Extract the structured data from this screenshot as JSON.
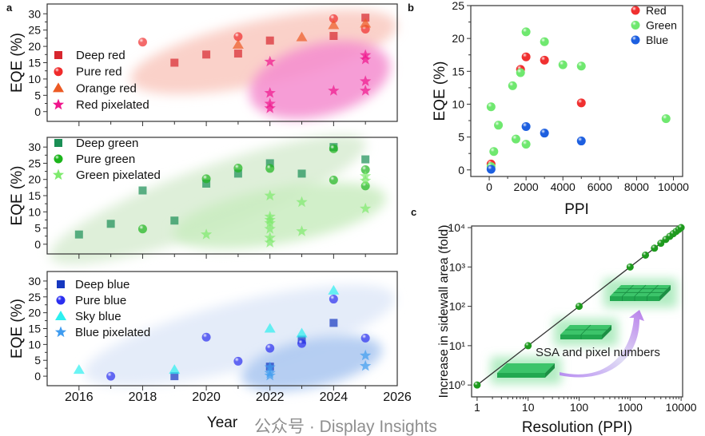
{
  "chart_data": [
    {
      "panel": "a",
      "type": "scatter",
      "xlabel": "",
      "ylabel": "EQE (%)",
      "xlim": [
        2015,
        2026
      ],
      "ylim": [
        -3,
        33
      ],
      "yticks": [
        0,
        5,
        10,
        15,
        20,
        25,
        30
      ],
      "shaded_regions": [
        "#f9c9c0",
        "#f48ccf"
      ],
      "series": [
        {
          "name": "Deep red",
          "marker": "square",
          "color": "#d7262e",
          "points": [
            [
              2019,
              15
            ],
            [
              2020,
              17.5
            ],
            [
              2021,
              17.8
            ],
            [
              2022,
              21.8
            ],
            [
              2024,
              23.2
            ],
            [
              2025,
              28.8
            ]
          ]
        },
        {
          "name": "Pure red",
          "marker": "circle",
          "color": "#f02b2b",
          "points": [
            [
              2018,
              21.3
            ],
            [
              2021,
              23
            ],
            [
              2024,
              28.5
            ],
            [
              2025,
              25.3
            ]
          ]
        },
        {
          "name": "Orange red",
          "marker": "triangle",
          "color": "#ec5a24",
          "points": [
            [
              2021,
              20.5
            ],
            [
              2023,
              22.8
            ],
            [
              2024,
              26.5
            ],
            [
              2025,
              27
            ]
          ]
        },
        {
          "name": "Red pixelated",
          "marker": "star",
          "color": "#f0158c",
          "points": [
            [
              2022,
              15.3
            ],
            [
              2022,
              5.7
            ],
            [
              2022,
              2.4
            ],
            [
              2022,
              1.0
            ],
            [
              2024,
              6.4
            ],
            [
              2025,
              17.3
            ],
            [
              2025,
              16
            ],
            [
              2025,
              9.3
            ],
            [
              2025,
              6.4
            ]
          ]
        }
      ]
    },
    {
      "panel": "a",
      "type": "scatter",
      "xlabel": "",
      "ylabel": "EQE (%)",
      "xlim": [
        2015,
        2026
      ],
      "ylim": [
        -3,
        33
      ],
      "yticks": [
        0,
        5,
        10,
        15,
        20,
        25,
        30
      ],
      "shaded_regions": [
        "#d8ecd2",
        "#c9ecc0"
      ],
      "series": [
        {
          "name": "Deep green",
          "marker": "square",
          "color": "#1a8f55",
          "points": [
            [
              2016,
              3
            ],
            [
              2017,
              6.3
            ],
            [
              2018,
              16.6
            ],
            [
              2019,
              7.3
            ],
            [
              2020,
              18.7
            ],
            [
              2021,
              21.8
            ],
            [
              2022,
              25
            ],
            [
              2023,
              21.8
            ],
            [
              2024,
              30
            ],
            [
              2025,
              26.2
            ]
          ]
        },
        {
          "name": "Pure green",
          "marker": "circle",
          "color": "#1cb51c",
          "points": [
            [
              2018,
              4.7
            ],
            [
              2020,
              20.2
            ],
            [
              2021,
              23.5
            ],
            [
              2022,
              23.4
            ],
            [
              2024,
              29.5
            ],
            [
              2024,
              19.8
            ],
            [
              2025,
              23
            ],
            [
              2025,
              18
            ]
          ]
        },
        {
          "name": "Green pixelated",
          "marker": "star",
          "color": "#7fea6e",
          "points": [
            [
              2020,
              3
            ],
            [
              2022,
              15
            ],
            [
              2022,
              8.5
            ],
            [
              2022,
              7.5
            ],
            [
              2022,
              6.5
            ],
            [
              2022,
              4.7
            ],
            [
              2022,
              2
            ],
            [
              2022,
              0.5
            ],
            [
              2023,
              13
            ],
            [
              2023,
              4
            ],
            [
              2025,
              21
            ],
            [
              2025,
              19.6
            ],
            [
              2025,
              11
            ]
          ]
        }
      ]
    },
    {
      "panel": "a",
      "type": "scatter",
      "xlabel": "Year",
      "ylabel": "EQE (%)",
      "xlim": [
        2015,
        2026
      ],
      "ylim": [
        -3,
        33
      ],
      "xticks": [
        2016,
        2018,
        2020,
        2022,
        2024,
        2026
      ],
      "xtick_labels": [
        "2016",
        "2018",
        "2020",
        "2022",
        "2024",
        "2026"
      ],
      "yticks": [
        0,
        5,
        10,
        15,
        20,
        25,
        30
      ],
      "shaded_regions": [
        "#dfe9f8",
        "#a9c6f0"
      ],
      "series": [
        {
          "name": "Deep blue",
          "marker": "square",
          "color": "#1638c0",
          "points": [
            [
              2019,
              0
            ],
            [
              2022,
              3
            ],
            [
              2023,
              11.5
            ],
            [
              2024,
              16.8
            ]
          ]
        },
        {
          "name": "Pure blue",
          "marker": "circle",
          "color": "#2a2ef0",
          "points": [
            [
              2017,
              0
            ],
            [
              2020,
              12.3
            ],
            [
              2021,
              4.7
            ],
            [
              2022,
              8.8
            ],
            [
              2023,
              10.3
            ],
            [
              2024,
              24.3
            ],
            [
              2025,
              12
            ]
          ]
        },
        {
          "name": "Sky blue",
          "marker": "triangle",
          "color": "#2cf0f0",
          "points": [
            [
              2016,
              2
            ],
            [
              2019,
              2
            ],
            [
              2022,
              15
            ],
            [
              2023,
              13.5
            ],
            [
              2024,
              27
            ]
          ]
        },
        {
          "name": "Blue pixelated",
          "marker": "star",
          "color": "#3f9cf0",
          "points": [
            [
              2022,
              2.8
            ],
            [
              2022,
              1
            ],
            [
              2022,
              0.2
            ],
            [
              2025,
              6.5
            ],
            [
              2025,
              3.2
            ]
          ]
        }
      ]
    },
    {
      "panel": "b",
      "type": "scatter",
      "xlabel": "PPI",
      "ylabel": "EQE (%)",
      "xlim": [
        -1000,
        10500
      ],
      "ylim": [
        -1,
        25
      ],
      "xticks": [
        0,
        2000,
        4000,
        6000,
        8000,
        10000
      ],
      "xtick_labels": [
        "0",
        "2000",
        "4000",
        "6000",
        "8000",
        "10000"
      ],
      "yticks": [
        0,
        5,
        10,
        15,
        20,
        25
      ],
      "legend": "top-right",
      "series": [
        {
          "name": "Red",
          "marker": "circle",
          "color": "#f03030",
          "points": [
            [
              100,
              0.9
            ],
            [
              1700,
              15.3
            ],
            [
              2000,
              17.2
            ],
            [
              3000,
              16.7
            ],
            [
              5000,
              10.2
            ]
          ]
        },
        {
          "name": "Green",
          "marker": "circle",
          "color": "#6fe86f",
          "points": [
            [
              100,
              9.6
            ],
            [
              100,
              0.5
            ],
            [
              250,
              2.8
            ],
            [
              500,
              6.8
            ],
            [
              1270,
              12.8
            ],
            [
              1450,
              4.7
            ],
            [
              1700,
              14.8
            ],
            [
              2000,
              21
            ],
            [
              2000,
              3.9
            ],
            [
              3000,
              19.5
            ],
            [
              4000,
              16
            ],
            [
              5000,
              15.8
            ],
            [
              9600,
              7.8
            ]
          ]
        },
        {
          "name": "Blue",
          "marker": "circle",
          "color": "#1d5fe0",
          "points": [
            [
              100,
              0.1
            ],
            [
              2000,
              6.6
            ],
            [
              3000,
              5.6
            ],
            [
              5000,
              4.4
            ]
          ]
        }
      ]
    },
    {
      "panel": "c",
      "type": "line",
      "xlabel": "Resolution (PPI)",
      "ylabel": "Increase in sidewall area (fold)",
      "xscale": "log",
      "yscale": "log",
      "xlim": [
        0.78,
        10700
      ],
      "ylim": [
        0.5,
        11000
      ],
      "xticks": [
        1,
        10,
        100,
        1000,
        10000
      ],
      "xtick_labels": [
        "1",
        "10",
        "100",
        "1000",
        "10000"
      ],
      "yticks": [
        1,
        10,
        100,
        1000,
        10000
      ],
      "ytick_labels": [
        "10⁰",
        "10¹",
        "10²",
        "10³",
        "10⁴"
      ],
      "annotation": "SSA and pixel numbers",
      "series": [
        {
          "marker": "circle",
          "color": "#1e9a1e",
          "line_color": "#333333",
          "points": [
            [
              1,
              1
            ],
            [
              10,
              10
            ],
            [
              100,
              100
            ],
            [
              1000,
              1000
            ],
            [
              2000,
              2000
            ],
            [
              3000,
              3000
            ],
            [
              4000,
              4000
            ],
            [
              5000,
              5000
            ],
            [
              6000,
              6000
            ],
            [
              7000,
              7000
            ],
            [
              8000,
              8000
            ],
            [
              9000,
              9000
            ],
            [
              10000,
              10000
            ]
          ]
        }
      ]
    }
  ],
  "panel_labels": [
    "a",
    "b",
    "c"
  ],
  "watermark": "公众号 · Display Insights"
}
